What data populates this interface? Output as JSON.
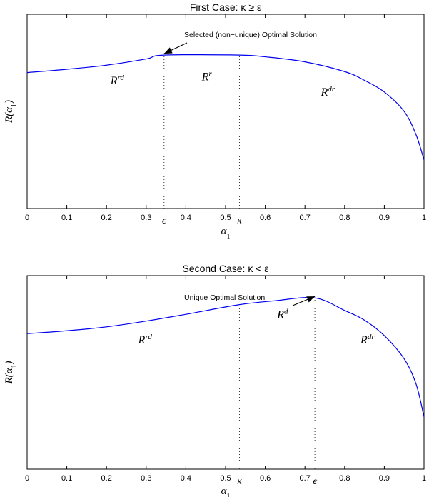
{
  "chart_data": [
    {
      "type": "line",
      "title": "First Case: κ ≥ ε",
      "xlabel": "α1",
      "ylabel": "R(α1)",
      "xlim": [
        0,
        1
      ],
      "xticks": [
        "0",
        "0.1",
        "0.2",
        "0.3",
        "0.4",
        "0.5",
        "0.6",
        "0.7",
        "0.8",
        "0.9",
        "1"
      ],
      "special_ticks": [
        {
          "label": "ϵ",
          "x": 0.345
        },
        {
          "label": "κ",
          "x": 0.535
        }
      ],
      "series": [
        {
          "x": [
            0,
            0.1,
            0.2,
            0.3,
            0.345,
            0.535,
            0.6,
            0.7,
            0.8,
            0.85,
            0.9,
            0.95,
            0.98,
            1.0
          ],
          "y": [
            0.7,
            0.717,
            0.738,
            0.77,
            0.79,
            0.79,
            0.781,
            0.755,
            0.705,
            0.66,
            0.6,
            0.5,
            0.38,
            0.25
          ]
        }
      ],
      "dotted_verticals": [
        0.345,
        0.535
      ],
      "region_labels": [
        {
          "text": "R",
          "sup": "rd",
          "x": 0.21,
          "y": 0.64
        },
        {
          "text": "R",
          "sup": "r",
          "x": 0.44,
          "y": 0.66
        },
        {
          "text": "R",
          "sup": "dr",
          "x": 0.74,
          "y": 0.58
        }
      ],
      "annotation": {
        "text": "Selected (non−unique) Optimal Solution",
        "arrow_to_x": 0.345
      }
    },
    {
      "type": "line",
      "title": "Second Case: κ < ε",
      "xlabel": "α1",
      "ylabel": "R(α1)",
      "xlim": [
        0,
        1
      ],
      "xticks": [
        "0",
        "0.1",
        "0.2",
        "0.3",
        "0.4",
        "0.5",
        "0.6",
        "0.7",
        "0.8",
        "0.9",
        "1"
      ],
      "special_ticks": [
        {
          "label": "κ",
          "x": 0.535
        },
        {
          "label": "ϵ",
          "x": 0.725
        }
      ],
      "series": [
        {
          "x": [
            0,
            0.1,
            0.2,
            0.3,
            0.4,
            0.535,
            0.625,
            0.725,
            0.8,
            0.85,
            0.9,
            0.95,
            0.98,
            1.0
          ],
          "y": [
            0.7,
            0.715,
            0.735,
            0.765,
            0.8,
            0.85,
            0.87,
            0.885,
            0.82,
            0.77,
            0.69,
            0.57,
            0.44,
            0.27
          ]
        }
      ],
      "dotted_verticals": [
        0.535,
        0.725
      ],
      "region_labels": [
        {
          "text": "R",
          "sup": "rd",
          "x": 0.28,
          "y": 0.65
        },
        {
          "text": "R",
          "sup": "d",
          "x": 0.63,
          "y": 0.78
        },
        {
          "text": "R",
          "sup": "dr",
          "x": 0.84,
          "y": 0.65
        }
      ],
      "annotation": {
        "text": "Unique Optimal Solution",
        "arrow_to_x": 0.725
      }
    }
  ]
}
